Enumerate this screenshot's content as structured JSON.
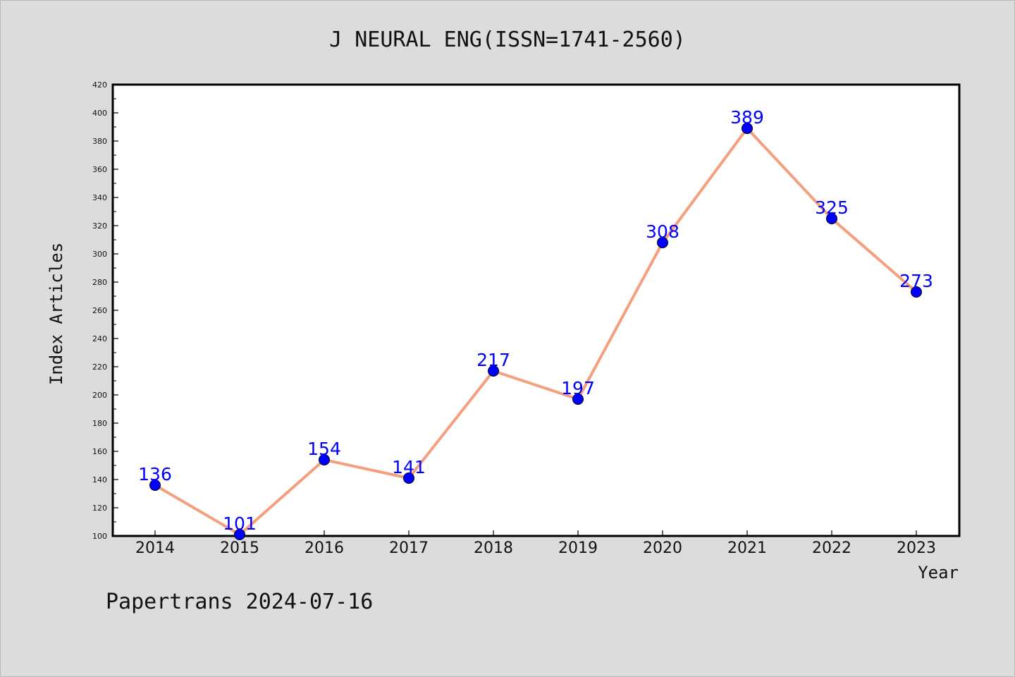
{
  "chart_data": {
    "type": "line",
    "title": "J NEURAL ENG(ISSN=1741-2560)",
    "xlabel": "Year",
    "ylabel": "Index Articles",
    "categories": [
      "2014",
      "2015",
      "2016",
      "2017",
      "2018",
      "2019",
      "2020",
      "2021",
      "2022",
      "2023"
    ],
    "values": [
      136,
      101,
      154,
      141,
      217,
      197,
      308,
      389,
      325,
      273
    ],
    "ylim": [
      100,
      420
    ],
    "yticks": [
      100,
      120,
      140,
      160,
      180,
      200,
      220,
      240,
      260,
      280,
      300,
      320,
      340,
      360,
      380,
      400,
      420
    ],
    "grid": false,
    "legend": "none",
    "line_color": "#f4a07e",
    "marker_color": "#0000ff",
    "label_color": "#0000ff"
  },
  "footer": "Papertrans 2024-07-16"
}
